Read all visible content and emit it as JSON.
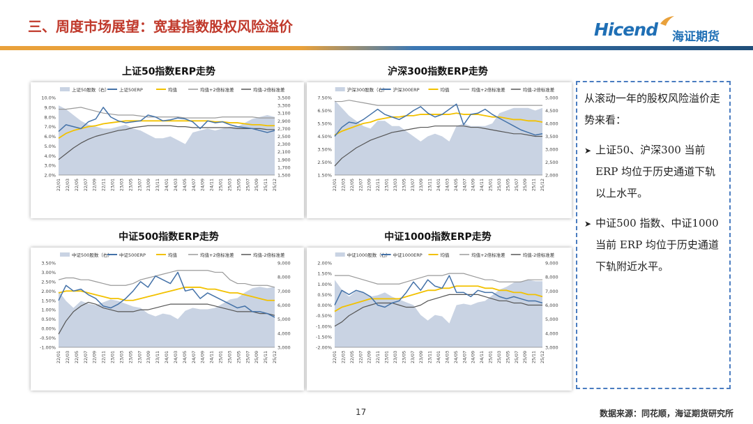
{
  "header": {
    "title": "三、周度市场展望：宽基指数股权风险溢价"
  },
  "logo": {
    "brand": "Hicend",
    "name_cn": "海证期货"
  },
  "colors": {
    "accent_red": "#c0392b",
    "brand_blue": "#1f6fb5",
    "erp": "#4472a8",
    "mean": "#f2c100",
    "upper": "#9a9a9a",
    "lower": "#555555",
    "area": "#c9d3e3"
  },
  "side_panel": {
    "intro": "从滚动一年的股权风险溢价走势来看：",
    "bullets": [
      "上证50、沪深300 当前ERP 均位于历史通道下轨以上水平。",
      "中证500 指数、中证1000当前 ERP 均位于历史通道下轨附近水平。"
    ]
  },
  "footer": {
    "page": "17",
    "source": "数据来源：同花顺，海证期货研究所"
  },
  "chart_data": [
    {
      "type": "line",
      "title": "上证50指数ERP走势",
      "series_names": [
        "上证50股数（右）",
        "上证50ERP",
        "均值",
        "均值+2倍标准差",
        "均值-2倍标准差"
      ],
      "y_left": {
        "ticks": [
          "10.0%",
          "9.0%",
          "8.0%",
          "7.0%",
          "6.0%",
          "5.0%",
          "4.0%",
          "3.0%",
          "2.0%"
        ],
        "range": [
          2.0,
          10.0
        ]
      },
      "y_right": {
        "ticks": [
          "3,500",
          "3,300",
          "3,100",
          "2,900",
          "2,700",
          "2,500",
          "2,300",
          "2,100",
          "1,900",
          "1,700",
          "1,500"
        ],
        "range": [
          1500,
          3500
        ]
      },
      "x_labels": [
        "22/01",
        "22/03",
        "22/05",
        "22/07",
        "22/09",
        "22/11",
        "23/01",
        "23/03",
        "23/05",
        "23/07",
        "23/09",
        "23/11",
        "24/01",
        "24/03",
        "24/05",
        "24/07",
        "24/09",
        "24/11",
        "25/01",
        "25/03",
        "25/05",
        "25/07",
        "25/09",
        "25/11",
        "25/12"
      ],
      "erp": [
        6.5,
        7.2,
        7.0,
        6.8,
        7.5,
        7.8,
        9.0,
        8.0,
        7.6,
        7.4,
        7.5,
        7.6,
        8.2,
        8.0,
        7.6,
        7.7,
        7.9,
        7.8,
        7.5,
        6.8,
        7.6,
        7.4,
        7.5,
        7.2,
        7.0,
        6.9,
        6.8,
        6.6,
        6.4,
        6.6
      ],
      "mean": [
        5.8,
        6.3,
        6.6,
        6.8,
        7.0,
        7.1,
        7.3,
        7.4,
        7.5,
        7.6,
        7.6,
        7.6,
        7.6,
        7.6,
        7.6,
        7.6,
        7.6,
        7.6,
        7.6,
        7.6,
        7.6,
        7.5,
        7.5,
        7.4,
        7.4,
        7.3,
        7.2,
        7.2,
        7.1,
        7.1
      ],
      "upper": [
        8.8,
        8.8,
        8.9,
        9.0,
        8.8,
        8.6,
        8.4,
        8.3,
        8.2,
        8.2,
        8.2,
        8.1,
        8.0,
        8.0,
        8.0,
        8.0,
        8.0,
        7.9,
        7.9,
        7.9,
        7.9,
        7.9,
        8.0,
        8.0,
        8.0,
        8.0,
        8.0,
        7.9,
        7.9,
        7.9
      ],
      "lower": [
        3.6,
        4.2,
        4.8,
        5.3,
        5.7,
        6.0,
        6.2,
        6.4,
        6.6,
        6.7,
        6.9,
        7.0,
        7.1,
        7.1,
        7.1,
        7.1,
        7.0,
        7.0,
        6.9,
        6.9,
        6.9,
        6.9,
        6.9,
        6.9,
        6.8,
        6.8,
        6.8,
        6.8,
        6.7,
        6.7
      ],
      "index": [
        3300,
        3200,
        3050,
        2900,
        2800,
        2750,
        2700,
        2700,
        2750,
        2800,
        2700,
        2650,
        2550,
        2450,
        2450,
        2500,
        2400,
        2300,
        2600,
        2650,
        2700,
        2650,
        2700,
        2750,
        2750,
        2850,
        2950,
        3000,
        3050,
        3000
      ]
    },
    {
      "type": "line",
      "title": "沪深300指数ERP走势",
      "series_names": [
        "沪深300股数（右）",
        "沪深300ERP",
        "均值",
        "均值+2倍标准差",
        "均值-2倍标准差"
      ],
      "y_left": {
        "ticks": [
          "7.50%",
          "6.50%",
          "5.50%",
          "4.50%",
          "3.50%",
          "2.50%",
          "1.50%"
        ],
        "range": [
          1.5,
          7.5
        ]
      },
      "y_right": {
        "ticks": [
          "5,000",
          "4,500",
          "4,000",
          "3,500",
          "3,000",
          "2,500",
          "2,000"
        ],
        "range": [
          2000,
          5000
        ]
      },
      "x_labels": [
        "22/01",
        "22/03",
        "22/05",
        "22/07",
        "22/09",
        "22/11",
        "23/01",
        "23/03",
        "23/05",
        "23/07",
        "23/09",
        "23/11",
        "24/01",
        "24/03",
        "24/05",
        "24/07",
        "24/09",
        "24/11",
        "25/01",
        "25/03",
        "25/05",
        "25/07",
        "25/09",
        "25/11",
        "25/12"
      ],
      "erp": [
        4.5,
        5.2,
        5.6,
        5.5,
        5.8,
        6.2,
        6.6,
        6.2,
        6.0,
        5.8,
        6.1,
        6.5,
        6.8,
        6.3,
        6.0,
        6.2,
        6.6,
        7.0,
        5.4,
        6.2,
        6.3,
        6.6,
        6.2,
        5.9,
        5.6,
        5.3,
        5.0,
        4.8,
        4.6,
        4.7
      ],
      "mean": [
        4.6,
        4.9,
        5.1,
        5.3,
        5.5,
        5.6,
        5.8,
        5.9,
        6.0,
        6.0,
        6.1,
        6.1,
        6.2,
        6.2,
        6.2,
        6.2,
        6.2,
        6.3,
        6.2,
        6.2,
        6.2,
        6.1,
        6.0,
        6.0,
        5.9,
        5.8,
        5.8,
        5.7,
        5.7,
        5.6
      ],
      "upper": [
        7.2,
        7.2,
        7.3,
        7.2,
        7.1,
        7.0,
        6.9,
        6.9,
        6.9,
        6.9,
        6.9,
        6.9,
        6.9,
        6.9,
        6.9,
        6.9,
        6.9,
        6.9,
        6.9,
        6.9,
        6.9,
        6.9,
        6.9,
        6.9,
        6.9,
        6.9,
        6.9,
        6.9,
        6.9,
        6.9
      ],
      "lower": [
        2.2,
        2.8,
        3.2,
        3.6,
        3.9,
        4.2,
        4.4,
        4.6,
        4.8,
        4.9,
        5.0,
        5.1,
        5.2,
        5.2,
        5.3,
        5.3,
        5.3,
        5.3,
        5.3,
        5.2,
        5.2,
        5.1,
        5.0,
        4.9,
        4.8,
        4.7,
        4.7,
        4.6,
        4.5,
        4.5
      ],
      "index": [
        4900,
        4600,
        4300,
        4100,
        3900,
        3800,
        4100,
        4100,
        3900,
        3900,
        3700,
        3500,
        3300,
        3500,
        3600,
        3500,
        3300,
        3900,
        4000,
        3900,
        3900,
        3900,
        4000,
        4400,
        4500,
        4600,
        4600,
        4600,
        4500,
        4600
      ]
    },
    {
      "type": "line",
      "title": "中证500指数ERP走势",
      "series_names": [
        "中证500股数（右）",
        "中证500ERP",
        "均值",
        "均值+2倍标准差",
        "均值-2倍标准差"
      ],
      "y_left": {
        "ticks": [
          "3.50%",
          "3.00%",
          "2.50%",
          "2.00%",
          "1.50%",
          "1.00%",
          "0.50%",
          "0.00%",
          "-0.50%",
          "-1.00%"
        ],
        "range": [
          -1.0,
          3.5
        ]
      },
      "y_right": {
        "ticks": [
          "9,000",
          "8,000",
          "7,000",
          "6,000",
          "5,000",
          "4,000",
          "3,000"
        ],
        "range": [
          3000,
          9000
        ]
      },
      "x_labels": [
        "22/01",
        "22/03",
        "22/05",
        "22/07",
        "22/09",
        "22/11",
        "23/01",
        "23/03",
        "23/05",
        "23/07",
        "23/09",
        "23/11",
        "24/01",
        "24/03",
        "24/05",
        "24/07",
        "24/09",
        "24/11",
        "25/01",
        "25/03",
        "25/05",
        "25/07",
        "25/09",
        "25/11",
        "25/12"
      ],
      "erp": [
        1.5,
        2.3,
        2.0,
        2.1,
        1.8,
        1.6,
        1.2,
        1.1,
        1.3,
        1.6,
        2.0,
        2.5,
        2.2,
        2.8,
        2.6,
        2.4,
        3.0,
        2.0,
        2.1,
        1.6,
        1.9,
        1.7,
        1.5,
        1.3,
        1.1,
        1.2,
        0.9,
        0.9,
        0.8,
        0.6
      ],
      "mean": [
        1.9,
        2.0,
        2.0,
        2.0,
        1.9,
        1.8,
        1.7,
        1.6,
        1.6,
        1.5,
        1.5,
        1.6,
        1.7,
        1.8,
        1.9,
        2.0,
        2.1,
        2.2,
        2.2,
        2.2,
        2.1,
        2.1,
        2.0,
        1.9,
        1.9,
        1.8,
        1.7,
        1.6,
        1.5,
        1.5
      ],
      "upper": [
        2.6,
        2.7,
        2.7,
        2.6,
        2.6,
        2.5,
        2.4,
        2.3,
        2.3,
        2.3,
        2.4,
        2.6,
        2.7,
        2.8,
        2.9,
        3.0,
        3.1,
        3.1,
        3.1,
        3.1,
        3.1,
        3.0,
        3.0,
        2.6,
        2.4,
        2.4,
        2.3,
        2.3,
        2.3,
        2.2
      ],
      "lower": [
        -0.3,
        0.4,
        0.9,
        1.2,
        1.4,
        1.3,
        1.1,
        1.0,
        0.9,
        0.9,
        0.9,
        1.0,
        1.0,
        1.1,
        1.2,
        1.3,
        1.3,
        1.3,
        1.3,
        1.3,
        1.3,
        1.2,
        1.1,
        1.0,
        0.9,
        0.9,
        0.9,
        0.8,
        0.8,
        0.7
      ],
      "index": [
        7000,
        6300,
        5800,
        6300,
        6100,
        6000,
        6200,
        6400,
        6300,
        6100,
        5900,
        5800,
        5400,
        5200,
        5400,
        5300,
        5000,
        5600,
        5800,
        5700,
        5700,
        5800,
        6100,
        6400,
        6500,
        6900,
        7200,
        7300,
        7200,
        7300
      ]
    },
    {
      "type": "line",
      "title": "中证1000指数ERP走势",
      "series_names": [
        "中证1000股数（右）",
        "中证1000ERP",
        "均值",
        "均值+2倍标准差",
        "均值-2倍标准差"
      ],
      "y_left": {
        "ticks": [
          "2.00%",
          "1.50%",
          "1.00%",
          "0.50%",
          "0.00%",
          "-0.50%",
          "-1.00%",
          "-1.50%",
          "-2.00%"
        ],
        "range": [
          -2.0,
          2.0
        ]
      },
      "y_right": {
        "ticks": [
          "9,000",
          "8,000",
          "7,000",
          "6,000",
          "5,000",
          "4,000",
          "3,000"
        ],
        "range": [
          3000,
          9000
        ]
      },
      "x_labels": [
        "22/01",
        "22/03",
        "22/05",
        "22/07",
        "22/09",
        "22/11",
        "23/01",
        "23/03",
        "23/05",
        "23/07",
        "23/09",
        "23/11",
        "24/01",
        "24/03",
        "24/05",
        "24/07",
        "24/09",
        "24/11",
        "25/01",
        "25/03",
        "25/05",
        "25/07",
        "25/09",
        "25/11",
        "25/12"
      ],
      "erp": [
        0.0,
        0.7,
        0.5,
        0.7,
        0.6,
        0.4,
        0.0,
        -0.1,
        0.1,
        0.2,
        0.6,
        1.1,
        0.7,
        1.2,
        0.9,
        0.8,
        1.4,
        0.6,
        0.6,
        0.4,
        0.7,
        0.6,
        0.6,
        0.4,
        0.3,
        0.4,
        0.3,
        0.2,
        0.2,
        0.1
      ],
      "mean": [
        -0.3,
        -0.1,
        0.0,
        0.1,
        0.2,
        0.3,
        0.3,
        0.3,
        0.3,
        0.3,
        0.4,
        0.5,
        0.6,
        0.7,
        0.7,
        0.8,
        0.8,
        0.9,
        0.9,
        0.9,
        0.9,
        0.8,
        0.8,
        0.7,
        0.7,
        0.6,
        0.6,
        0.5,
        0.5,
        0.4
      ],
      "upper": [
        1.4,
        1.4,
        1.4,
        1.3,
        1.2,
        1.1,
        1.0,
        1.0,
        1.0,
        1.0,
        1.1,
        1.2,
        1.3,
        1.4,
        1.4,
        1.4,
        1.5,
        1.5,
        1.5,
        1.4,
        1.3,
        1.2,
        1.2,
        1.1,
        1.1,
        1.1,
        1.1,
        1.2,
        1.2,
        1.2
      ],
      "lower": [
        -1.0,
        -0.8,
        -0.5,
        -0.3,
        -0.1,
        0.0,
        0.1,
        0.1,
        0.1,
        0.0,
        -0.1,
        -0.1,
        0.0,
        0.2,
        0.3,
        0.4,
        0.5,
        0.5,
        0.5,
        0.5,
        0.5,
        0.4,
        0.3,
        0.2,
        0.2,
        0.1,
        0.1,
        0.0,
        0.0,
        0.0
      ],
      "index": [
        7800,
        7100,
        6600,
        7000,
        6900,
        6600,
        6700,
        6900,
        6600,
        6400,
        6200,
        6000,
        5300,
        4900,
        5300,
        5200,
        4700,
        6000,
        6100,
        6000,
        6200,
        6300,
        6700,
        7100,
        7300,
        7600,
        7700,
        7800,
        7700,
        7700
      ]
    }
  ]
}
